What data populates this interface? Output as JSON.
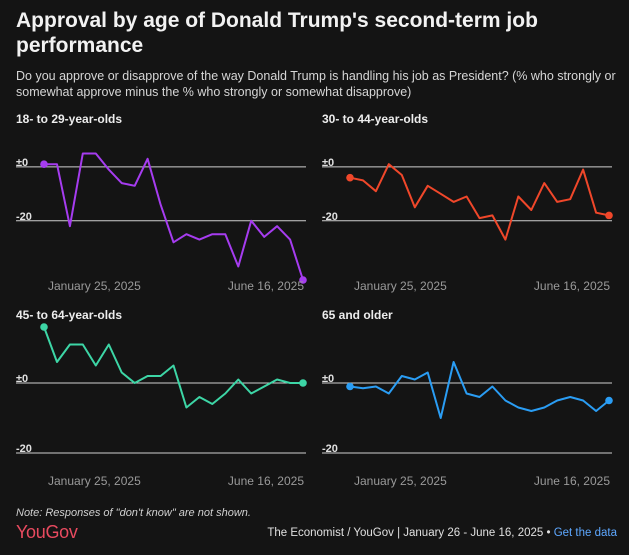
{
  "header": {
    "title": "Approval by age of Donald Trump's second-term job performance",
    "subtitle": "Do you approve or disapprove of the way Donald Trump is handling his job as President? (% who strongly or somewhat approve minus the % who strongly or somewhat disapprove)"
  },
  "footer": {
    "note": "Note: Responses of \"don't know\" are not shown.",
    "logo": "YouGov",
    "source": "The Economist / YouGov | January 26 - June 16, 2025 •",
    "get_data": "Get the data"
  },
  "chart_data": [
    {
      "type": "line",
      "title": "18- to 29-year-olds",
      "color": "#a63cf0",
      "ylim": [
        -42,
        10
      ],
      "yticks": [
        {
          "value": 0,
          "label": "±0"
        },
        {
          "value": -20,
          "label": "-20"
        }
      ],
      "xticks": [
        "January 25, 2025",
        "June 16, 2025"
      ],
      "values": [
        1,
        1,
        -22,
        5,
        5,
        -1,
        -6,
        -7,
        3,
        -14,
        -28,
        -25,
        -27,
        -25,
        -25,
        -37,
        -20,
        -26,
        -22,
        -27,
        -42
      ]
    },
    {
      "type": "line",
      "title": "30- to 44-year-olds",
      "color": "#f0472a",
      "ylim": [
        -42,
        10
      ],
      "yticks": [
        {
          "value": 0,
          "label": "±0"
        },
        {
          "value": -20,
          "label": "-20"
        }
      ],
      "xticks": [
        "January 25, 2025",
        "June 16, 2025"
      ],
      "values": [
        -4,
        -5,
        -9,
        1,
        -3,
        -15,
        -7,
        -10,
        -13,
        -11,
        -19,
        -18,
        -27,
        -11,
        -16,
        -6,
        -13,
        -12,
        -1,
        -17,
        -18
      ]
    },
    {
      "type": "line",
      "title": "45- to 64-year-olds",
      "color": "#3dd6a6",
      "ylim": [
        -22,
        18
      ],
      "yticks": [
        {
          "value": 0,
          "label": "±0"
        },
        {
          "value": -20,
          "label": "-20"
        }
      ],
      "xticks": [
        "January 25, 2025",
        "June 16, 2025"
      ],
      "values": [
        16,
        6,
        11,
        11,
        5,
        11,
        3,
        0,
        2,
        2,
        5,
        -7,
        -4,
        -6,
        -3,
        1,
        -3,
        -1,
        1,
        0,
        0
      ]
    },
    {
      "type": "line",
      "title": "65 and older",
      "color": "#2a9df4",
      "ylim": [
        -22,
        18
      ],
      "yticks": [
        {
          "value": 0,
          "label": "±0"
        },
        {
          "value": -20,
          "label": "-20"
        }
      ],
      "xticks": [
        "January 25, 2025",
        "June 16, 2025"
      ],
      "values": [
        -1,
        -1.5,
        -1,
        -3,
        2,
        1,
        3,
        -10,
        6,
        -3,
        -4,
        -1,
        -5,
        -7,
        -8,
        -7,
        -5,
        -4,
        -5,
        -8,
        -5
      ]
    }
  ]
}
